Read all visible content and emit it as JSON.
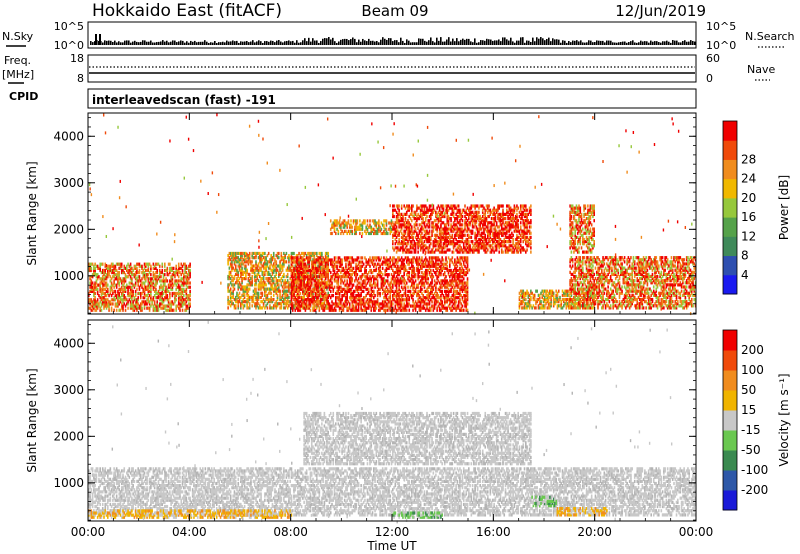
{
  "header": {
    "station": "Hokkaido East (fitACF)",
    "beam": "Beam 09",
    "date": "12/Jun/2019"
  },
  "strip": {
    "nsky_label": "N.Sky",
    "nsearch_label": "N.Search",
    "count_ticks_left": [
      "10^5",
      "10^0"
    ],
    "count_ticks_right": [
      "10^5",
      "10^0"
    ],
    "freq_label_top": "Freq.",
    "freq_label_unit": "[MHz]",
    "freq_ticks": [
      "18",
      "8"
    ],
    "nave_label": "Nave",
    "nave_ticks": [
      "60",
      "0"
    ],
    "cpid_label": "CPID",
    "cpid_text": "interleavedscan (fast) -191"
  },
  "chart_data": [
    {
      "type": "heatmap",
      "name": "power",
      "ylabel": "Slant Range [km]",
      "y_ticks": [
        1000,
        2000,
        3000,
        4000
      ],
      "ylim": [
        180,
        4500
      ],
      "x_ticks": [
        "00:00",
        "04:00",
        "08:00",
        "12:00",
        "16:00",
        "20:00",
        "00:00"
      ],
      "xlim_hours": [
        0,
        24
      ],
      "colorbar": {
        "label": "Power [dB]",
        "ticks": [
          "4",
          "8",
          "12",
          "16",
          "20",
          "24",
          "28"
        ],
        "colors": [
          "#1a1af0",
          "#2e4fb0",
          "#3f8a5a",
          "#55a24a",
          "#96c83c",
          "#f0b800",
          "#f08c1e",
          "#f04a0a",
          "#f00000"
        ]
      },
      "echo_regions": [
        {
          "t0": 0.0,
          "t1": 4.0,
          "r0": 250,
          "r1": 1250,
          "level": "orange-red"
        },
        {
          "t0": 5.5,
          "t1": 9.5,
          "r0": 300,
          "r1": 1500,
          "level": "orange"
        },
        {
          "t0": 8.0,
          "t1": 15.0,
          "r0": 250,
          "r1": 1400,
          "level": "red"
        },
        {
          "t0": 9.5,
          "t1": 12.0,
          "r0": 1900,
          "r1": 2200,
          "level": "orange"
        },
        {
          "t0": 12.0,
          "t1": 17.5,
          "r0": 1500,
          "r1": 2500,
          "level": "red"
        },
        {
          "t0": 17.0,
          "t1": 20.0,
          "r0": 300,
          "r1": 700,
          "level": "orange"
        },
        {
          "t0": 19.0,
          "t1": 20.0,
          "r0": 1500,
          "r1": 2500,
          "level": "orange-red"
        },
        {
          "t0": 19.0,
          "t1": 24.0,
          "r0": 300,
          "r1": 1400,
          "level": "orange-red"
        }
      ]
    },
    {
      "type": "heatmap",
      "name": "velocity",
      "ylabel": "Slant Range [km]",
      "y_ticks": [
        1000,
        2000,
        3000,
        4000
      ],
      "ylim": [
        180,
        4500
      ],
      "x_ticks": [
        "00:00",
        "04:00",
        "08:00",
        "12:00",
        "16:00",
        "20:00",
        "00:00"
      ],
      "xlabel": "Time UT",
      "colorbar": {
        "label": "Velocity [m s⁻¹]",
        "ticks": [
          "200",
          "100",
          "50",
          "15",
          "-15",
          "-50",
          "-100",
          "-200"
        ],
        "colors": [
          "#1a1ad8",
          "#2e58a8",
          "#3a8a50",
          "#6ac850",
          "#c8c8c8",
          "#f0b400",
          "#f08c1e",
          "#f04a0a",
          "#f00000"
        ]
      },
      "echo_regions": [
        {
          "t0": 0.0,
          "t1": 24.0,
          "r0": 300,
          "r1": 1300,
          "level": "grey"
        },
        {
          "t0": 8.5,
          "t1": 17.5,
          "r0": 1400,
          "r1": 2500,
          "level": "grey"
        },
        {
          "t0": 0.0,
          "t1": 8.0,
          "r0": 250,
          "r1": 400,
          "level": "orange"
        },
        {
          "t0": 12.0,
          "t1": 14.0,
          "r0": 250,
          "r1": 350,
          "level": "green"
        },
        {
          "t0": 17.5,
          "t1": 18.5,
          "r0": 500,
          "r1": 700,
          "level": "green"
        },
        {
          "t0": 18.5,
          "t1": 20.5,
          "r0": 300,
          "r1": 450,
          "level": "orange"
        }
      ]
    }
  ]
}
